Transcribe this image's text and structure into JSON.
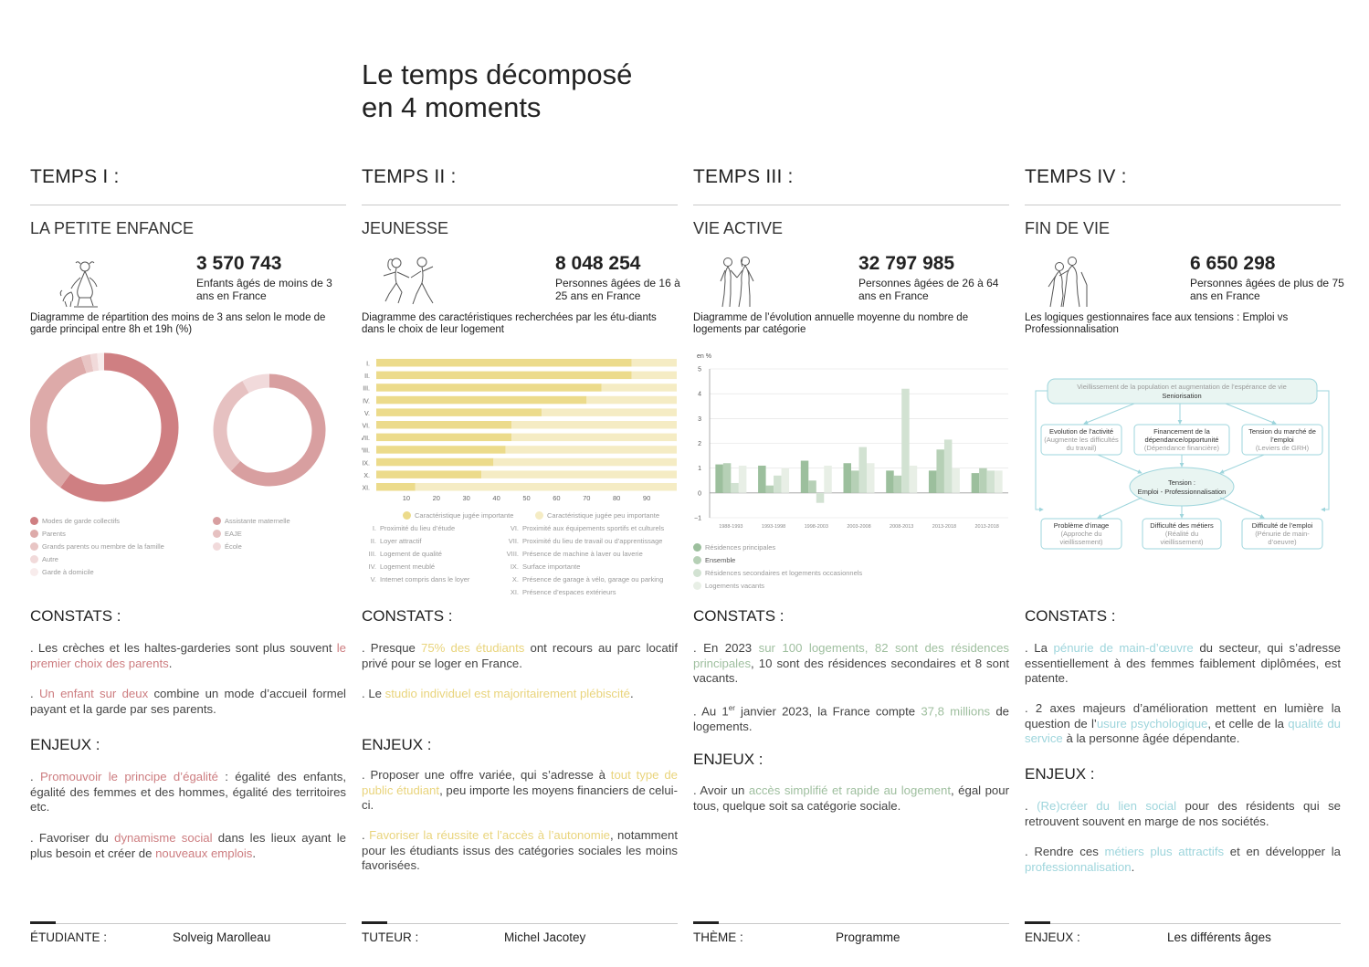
{
  "main_title": [
    "Le temps décomposé",
    "en 4 moments"
  ],
  "columns": [
    {
      "temps": "TEMPS I :",
      "subtitle": "LA PETITE ENFANCE",
      "stat_number": "3 570 743",
      "stat_desc": "Enfants âgés de moins de 3 ans en France",
      "chart_title": "Diagramme de répartition des moins de 3 ans selon le mode de garde principal entre 8h et 19h (%)",
      "constats_heading": "CONSTATS :",
      "constats": [
        [
          {
            "t": ". Les crèches et les haltes-garderies sont plus souvent "
          },
          {
            "t": "le premier choix des parents",
            "h": true
          },
          {
            "t": "."
          }
        ],
        [
          {
            "t": ". "
          },
          {
            "t": "Un enfant sur deux",
            "h": true
          },
          {
            "t": " combine un mode d’accueil formel payant et la garde par ses parents."
          }
        ]
      ],
      "enjeux_heading": "ENJEUX :",
      "enjeux": [
        [
          {
            "t": ". "
          },
          {
            "t": "Promouvoir le principe d’égalité",
            "h": true
          },
          {
            "t": " : égalité des enfants, égalité des femmes et des hommes, égalité des territoires etc."
          }
        ],
        [
          {
            "t": ". Favoriser du "
          },
          {
            "t": "dynamisme social",
            "h": true
          },
          {
            "t": " dans les lieux ayant le plus besoin et créer de "
          },
          {
            "t": "nouveaux emplois",
            "h": true
          },
          {
            "t": "."
          }
        ]
      ],
      "footer_label": "ÉTUDIANTE :",
      "footer_value": "Solveig Marolleau"
    },
    {
      "temps": "TEMPS II :",
      "subtitle": "JEUNESSE",
      "stat_number": "8 048 254",
      "stat_desc": "Personnes âgées de 16 à 25 ans en France",
      "chart_title": "Diagramme des caractéristiques recherchées par les étu-diants dans le choix de leur logement",
      "constats_heading": "CONSTATS :",
      "constats": [
        [
          {
            "t": ". Presque "
          },
          {
            "t": "75% des étudiants",
            "h": true
          },
          {
            "t": " ont recours au parc locatif privé pour se loger en France."
          }
        ],
        [
          {
            "t": ". Le "
          },
          {
            "t": "studio individuel est majoritairement plébiscité",
            "h": true
          },
          {
            "t": "."
          }
        ]
      ],
      "enjeux_heading": "ENJEUX :",
      "enjeux": [
        [
          {
            "t": ". Proposer une offre variée, qui s’adresse à "
          },
          {
            "t": "tout type de public étudiant",
            "h": true
          },
          {
            "t": ", peu importe les moyens financiers de celui-ci."
          }
        ],
        [
          {
            "t": ". "
          },
          {
            "t": "Favoriser la réussite et l’accès à l’autonomie",
            "h": true
          },
          {
            "t": ", notamment pour les étudiants issus des catégories sociales les moins favorisées."
          }
        ]
      ],
      "footer_label": "TUTEUR :",
      "footer_value": "Michel Jacotey"
    },
    {
      "temps": "TEMPS III :",
      "subtitle": "VIE ACTIVE",
      "stat_number": "32 797 985",
      "stat_desc": "Personnes âgées de 26 à 64 ans en France",
      "chart_title": "Diagramme de l’évolution annuelle moyenne du nombre de logements par catégorie",
      "constats_heading": "CONSTATS :",
      "constats": [
        [
          {
            "t": ". En 2023 "
          },
          {
            "t": "sur 100 logements, 82 sont des résidences principales",
            "h": true
          },
          {
            "t": ", 10 sont des résidences secondaires et 8 sont vacants."
          }
        ],
        [
          {
            "t": ". Au 1"
          },
          {
            "t": "er",
            "sup": true
          },
          {
            "t": " janvier 2023, la France compte "
          },
          {
            "t": "37,8 millions",
            "h": true
          },
          {
            "t": " de logements."
          }
        ]
      ],
      "enjeux_heading": "ENJEUX :",
      "enjeux": [
        [
          {
            "t": ". Avoir un "
          },
          {
            "t": "accès simplifié et rapide au logement",
            "h": true
          },
          {
            "t": ", égal pour tous, quelque soit sa catégorie sociale."
          }
        ]
      ],
      "footer_label": "THÈME :",
      "footer_value": "Programme"
    },
    {
      "temps": "TEMPS IV :",
      "subtitle": "FIN DE VIE",
      "stat_number": "6 650 298",
      "stat_desc": "Personnes âgées de plus de 75 ans en France",
      "chart_title": "Les logiques gestionnaires face aux tensions : Emploi vs Professionnalisation",
      "constats_heading": "CONSTATS :",
      "constats": [
        [
          {
            "t": ". La "
          },
          {
            "t": "pénurie de main-d’œuvre",
            "h": true
          },
          {
            "t": " du secteur, qui s’adresse essentiellement à des femmes faiblement diplômées, est patente."
          }
        ],
        [
          {
            "t": ". 2 axes majeurs d’amélioration mettent en lumière la question de l’"
          },
          {
            "t": "usure psychologique",
            "h": true
          },
          {
            "t": ", et celle de la "
          },
          {
            "t": "qualité du service",
            "h": true
          },
          {
            "t": " à la personne âgée dépendante."
          }
        ]
      ],
      "enjeux_heading": "ENJEUX :",
      "enjeux": [
        [
          {
            "t": ". "
          },
          {
            "t": "(Re)créer du lien social",
            "h": true
          },
          {
            "t": " pour des résidents qui se retrouvent souvent en marge de nos sociétés."
          }
        ],
        [
          {
            "t": ". Rendre ces "
          },
          {
            "t": "métiers plus attractifs",
            "h": true
          },
          {
            "t": " et en développer la "
          },
          {
            "t": "professionnalisation",
            "h": true
          },
          {
            "t": "."
          }
        ]
      ],
      "footer_label": "ENJEUX :",
      "footer_value": "Les différents âges"
    }
  ],
  "chart_data": [
    {
      "type": "pie",
      "variant": "donut",
      "title": "Diagramme de répartition des moins de 3 ans selon le mode de garde principal entre 8h et 19h (%)",
      "charts": [
        {
          "labels": [
            "Modes de garde collectifs",
            "Parents",
            "Grands parents ou membre de la famille",
            "Autre",
            "Garde à domicile"
          ],
          "values": [
            60,
            35,
            2,
            1.5,
            1.5
          ],
          "colors": [
            "#cf7f82",
            "#ddaaa9",
            "#e8c5c4",
            "#f1dada",
            "#f8ecec"
          ]
        },
        {
          "labels": [
            "Assistante maternelle",
            "EAJE",
            "École"
          ],
          "values": [
            62,
            30,
            8
          ],
          "colors": [
            "#d89fa0",
            "#e6c1c1",
            "#f1dadb"
          ]
        }
      ]
    },
    {
      "type": "bar",
      "orientation": "horizontal",
      "stacked": true,
      "title": "Diagramme des caractéristiques recherchées par les étu-diants dans le choix de leur logement",
      "categories": [
        "I.",
        "II.",
        "III.",
        "IV.",
        "V.",
        "VI.",
        "VII.",
        "VIII.",
        "IX.",
        "X.",
        "XI."
      ],
      "series": [
        {
          "name": "Caractéristique jugée importante",
          "values": [
            85,
            85,
            75,
            70,
            55,
            45,
            45,
            43,
            39,
            35,
            13
          ],
          "color": "#ecdb8b"
        },
        {
          "name": "Caractéristique jugée peu importante",
          "values": [
            15,
            15,
            25,
            30,
            45,
            55,
            55,
            57,
            61,
            65,
            87
          ],
          "color": "#f5ecc4"
        }
      ],
      "x_ticks": [
        "10",
        "20",
        "30",
        "40",
        "50",
        "60",
        "70",
        "80",
        "90"
      ],
      "xlim": [
        0,
        100
      ],
      "key_legend": [
        "Proximité du lieu d’étude",
        "Loyer attractif",
        "Logement de qualité",
        "Logement meublé",
        "Internet compris dans le loyer",
        "Proximité aux équipements sportifs et culturels",
        "Proximité du lieu de travail ou d’apprentissage",
        "Présence de machine à laver ou laverie",
        "Surface importante",
        "Présence de garage à vélo, garage ou parking",
        "Présence d’espaces extérieurs"
      ],
      "key_numerals": [
        "I.",
        "II.",
        "III.",
        "IV.",
        "V.",
        "VI.",
        "VII.",
        "VIII.",
        "IX.",
        "X.",
        "XI."
      ]
    },
    {
      "type": "bar",
      "title": "Diagramme de l’évolution annuelle moyenne du nombre de logements par catégorie",
      "ylabel": "en %",
      "ylim": [
        -1,
        5
      ],
      "y_ticks": [
        "5",
        "4",
        "3",
        "2",
        "1",
        "0",
        "−1"
      ],
      "categories": [
        "1988-1993",
        "1993-1998",
        "1998-2003",
        "2003-2008",
        "2008-2013",
        "2013-2018",
        "2013-2018"
      ],
      "series": [
        {
          "name": "Résidences principales",
          "values": [
            1.15,
            1.1,
            1.3,
            1.2,
            0.9,
            0.9,
            0.8
          ],
          "color": "#9cbf9d"
        },
        {
          "name": "Ensemble",
          "values": [
            1.2,
            0.3,
            0.5,
            0.9,
            0.7,
            1.75,
            1.0
          ],
          "color": "#b6d0b6"
        },
        {
          "name": "Résidences secondaires et logements occasionnels",
          "values": [
            0.4,
            0.7,
            -0.4,
            1.85,
            4.2,
            2.15,
            0.9
          ],
          "color": "#d2e2d2"
        },
        {
          "name": "Logements vacants",
          "values": [
            1.1,
            1.0,
            1.1,
            1.2,
            1.1,
            1.0,
            0.9
          ],
          "color": "#e8efe6"
        }
      ]
    }
  ],
  "diagram": {
    "top": {
      "line1": "Vieillissement de la population et augmentation de l’espérance de vie",
      "line2": "Seniorisation"
    },
    "middle": [
      {
        "line1": "Evolution de l’activité",
        "line2": "(Augmente les difficultés",
        "line3": "du travail)"
      },
      {
        "line1": "Financement de la",
        "line2": "dépendance/opportunité",
        "line3": "(Dépendance financière)"
      },
      {
        "line1": "Tension du marché de",
        "line2": "l’emploi",
        "line3": "(Leviers de GRH)"
      }
    ],
    "center": {
      "line1": "Tension :",
      "line2": "Emploi - Professionnalisation"
    },
    "bottom": [
      {
        "line1": "Problème d’image",
        "line2": "(Approche du",
        "line3": "vieillissement)"
      },
      {
        "line1": "Difficulté des métiers",
        "line2": "(Réalité du",
        "line3": "vieillissement)"
      },
      {
        "line1": "Difficulté de l’emploi",
        "line2": "(Pénurie de main-",
        "line3": "d’oeuvre)"
      }
    ]
  },
  "colors": {
    "accent_1": "#cd7d80",
    "accent_2": "#e9d47c",
    "accent_3": "#9fbf9f",
    "accent_4": "#9ed5dc"
  },
  "icons": [
    "child-with-dog-illustration",
    "dancing-couple-illustration",
    "couple-standing-illustration",
    "elderly-couple-illustration"
  ]
}
